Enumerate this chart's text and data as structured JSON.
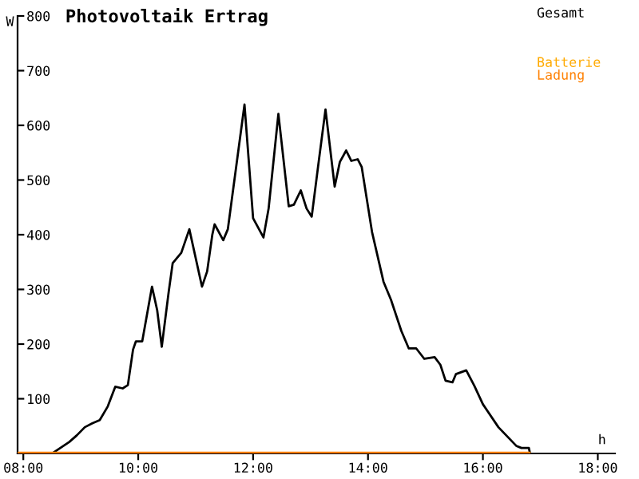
{
  "chart_data": {
    "type": "line",
    "title": "Photovoltaik Ertrag",
    "xlabel": "h",
    "ylabel": "W",
    "series": [
      {
        "name": "Gesamt",
        "color": "#000000",
        "x": [
          8.53,
          8.67,
          8.8,
          8.93,
          9.07,
          9.2,
          9.33,
          9.47,
          9.6,
          9.73,
          9.82,
          9.91,
          9.96,
          10.07,
          10.24,
          10.33,
          10.41,
          10.53,
          10.6,
          10.75,
          10.89,
          11.11,
          11.2,
          11.29,
          11.33,
          11.48,
          11.56,
          11.85,
          12.0,
          12.18,
          12.27,
          12.44,
          12.62,
          12.71,
          12.83,
          12.93,
          13.02,
          13.13,
          13.26,
          13.42,
          13.51,
          13.62,
          13.71,
          13.82,
          13.89,
          14.07,
          14.27,
          14.4,
          14.58,
          14.71,
          14.84,
          14.98,
          15.16,
          15.26,
          15.35,
          15.47,
          15.53,
          15.71,
          15.85,
          16.0,
          16.27,
          16.58,
          16.67,
          16.8,
          16.82
        ],
        "values": [
          2,
          12,
          21,
          33,
          48,
          55,
          61,
          86,
          122,
          119,
          125,
          190,
          205,
          205,
          305,
          262,
          195,
          295,
          348,
          367,
          410,
          305,
          333,
          400,
          419,
          390,
          410,
          638,
          430,
          395,
          448,
          621,
          452,
          455,
          481,
          448,
          433,
          524,
          629,
          488,
          533,
          554,
          535,
          538,
          524,
          405,
          314,
          281,
          224,
          192,
          192,
          173,
          176,
          162,
          133,
          130,
          145,
          152,
          124,
          90,
          48,
          14,
          10,
          10,
          0
        ]
      },
      {
        "name": "Batterie",
        "color": "#ffaa00"
      },
      {
        "name": "Ladung",
        "color": "#ff8000",
        "x": [
          7.9,
          16.8
        ],
        "values": [
          0,
          0
        ]
      }
    ],
    "xlim": [
      7.9,
      18.3
    ],
    "ylim": [
      0,
      800
    ],
    "xticks": [
      {
        "value": 8,
        "label": "08:00"
      },
      {
        "value": 10,
        "label": "10:00"
      },
      {
        "value": 12,
        "label": "12:00"
      },
      {
        "value": 14,
        "label": "14:00"
      },
      {
        "value": 16,
        "label": "16:00"
      },
      {
        "value": 18,
        "label": "18:00"
      }
    ],
    "yticks": [
      100,
      200,
      300,
      400,
      500,
      600,
      700,
      800
    ],
    "legend": "top right",
    "grid": false,
    "marker": "none",
    "line_style": "solid"
  }
}
